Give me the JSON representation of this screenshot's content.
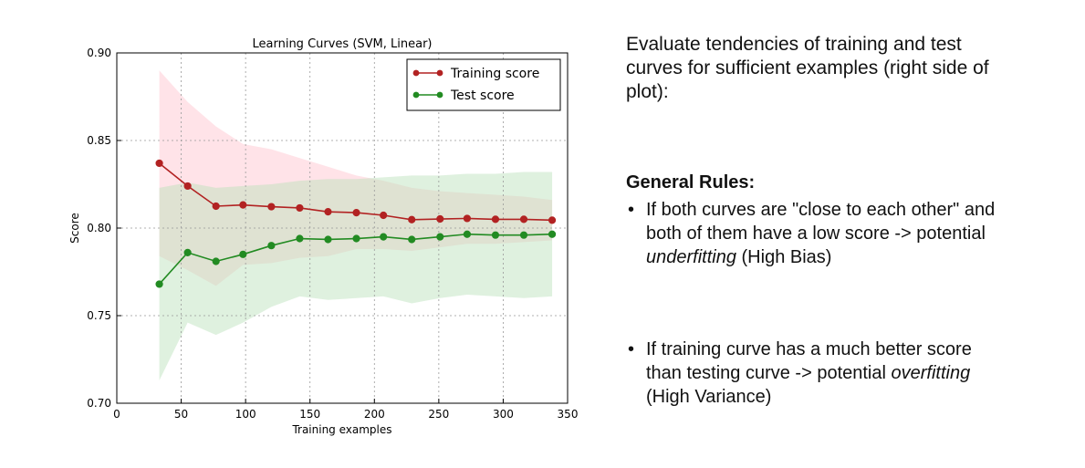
{
  "chart_data": {
    "type": "line",
    "title": "Learning Curves (SVM, Linear)",
    "xlabel": "Training examples",
    "ylabel": "Score",
    "xlim": [
      0,
      350
    ],
    "ylim": [
      0.7,
      0.9
    ],
    "xticks": [
      "0",
      "50",
      "100",
      "150",
      "200",
      "250",
      "300",
      "350"
    ],
    "yticks": [
      "0.70",
      "0.75",
      "0.80",
      "0.85",
      "0.90"
    ],
    "grid": true,
    "legend_position": "top-right",
    "x": [
      33,
      55,
      77,
      98,
      120,
      142,
      164,
      186,
      207,
      229,
      251,
      272,
      294,
      316,
      338
    ],
    "series": [
      {
        "name": "Training score",
        "color": "#b22222",
        "band_color": "#ffc0cb",
        "values": [
          0.837,
          0.824,
          0.8125,
          0.8132,
          0.8122,
          0.8115,
          0.8093,
          0.8088,
          0.8073,
          0.8048,
          0.8052,
          0.8055,
          0.805,
          0.805,
          0.8045
        ],
        "band_upper": [
          0.89,
          0.872,
          0.858,
          0.848,
          0.845,
          0.84,
          0.835,
          0.83,
          0.827,
          0.823,
          0.821,
          0.82,
          0.819,
          0.818,
          0.816
        ],
        "band_lower": [
          0.784,
          0.776,
          0.767,
          0.779,
          0.78,
          0.783,
          0.784,
          0.788,
          0.788,
          0.787,
          0.789,
          0.791,
          0.791,
          0.792,
          0.793
        ]
      },
      {
        "name": "Test score",
        "color": "#228b22",
        "band_color": "#b8e0b8",
        "values": [
          0.768,
          0.786,
          0.781,
          0.785,
          0.79,
          0.794,
          0.7935,
          0.794,
          0.795,
          0.7935,
          0.795,
          0.7965,
          0.796,
          0.796,
          0.7965
        ],
        "band_upper": [
          0.823,
          0.826,
          0.823,
          0.824,
          0.825,
          0.827,
          0.828,
          0.828,
          0.829,
          0.83,
          0.83,
          0.831,
          0.831,
          0.832,
          0.832
        ],
        "band_lower": [
          0.713,
          0.746,
          0.739,
          0.746,
          0.755,
          0.761,
          0.759,
          0.76,
          0.761,
          0.757,
          0.76,
          0.762,
          0.761,
          0.76,
          0.761
        ]
      }
    ]
  },
  "text": {
    "intro": "Evaluate tendencies of training and test curves for sufficient examples (right side of plot):",
    "rules_title": "General Rules:",
    "bullet": "•",
    "rule1_a": "If both curves are \"close to each other\" and both of them have a low score -> potential ",
    "rule1_em": "underfitting",
    "rule1_b": " (High Bias)",
    "rule2_a": "If training curve has a much better score than testing curve -> potential ",
    "rule2_em": "overfitting",
    "rule2_b": " (High Variance)"
  }
}
